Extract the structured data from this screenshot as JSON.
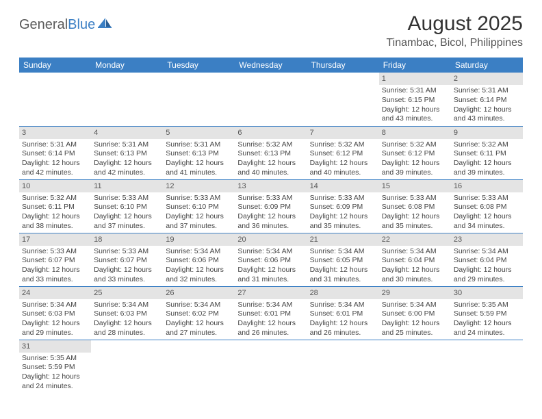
{
  "logo": {
    "text1": "General",
    "text2": "Blue"
  },
  "title": "August 2025",
  "subtitle": "Tinambac, Bicol, Philippines",
  "header_bg": "#3b7fc4",
  "daynum_bg": "#e4e4e4",
  "weekdays": [
    "Sunday",
    "Monday",
    "Tuesday",
    "Wednesday",
    "Thursday",
    "Friday",
    "Saturday"
  ],
  "weeks": [
    [
      null,
      null,
      null,
      null,
      null,
      {
        "n": "1",
        "sr": "Sunrise: 5:31 AM",
        "ss": "Sunset: 6:15 PM",
        "d1": "Daylight: 12 hours",
        "d2": "and 43 minutes."
      },
      {
        "n": "2",
        "sr": "Sunrise: 5:31 AM",
        "ss": "Sunset: 6:14 PM",
        "d1": "Daylight: 12 hours",
        "d2": "and 43 minutes."
      }
    ],
    [
      {
        "n": "3",
        "sr": "Sunrise: 5:31 AM",
        "ss": "Sunset: 6:14 PM",
        "d1": "Daylight: 12 hours",
        "d2": "and 42 minutes."
      },
      {
        "n": "4",
        "sr": "Sunrise: 5:31 AM",
        "ss": "Sunset: 6:13 PM",
        "d1": "Daylight: 12 hours",
        "d2": "and 42 minutes."
      },
      {
        "n": "5",
        "sr": "Sunrise: 5:31 AM",
        "ss": "Sunset: 6:13 PM",
        "d1": "Daylight: 12 hours",
        "d2": "and 41 minutes."
      },
      {
        "n": "6",
        "sr": "Sunrise: 5:32 AM",
        "ss": "Sunset: 6:13 PM",
        "d1": "Daylight: 12 hours",
        "d2": "and 40 minutes."
      },
      {
        "n": "7",
        "sr": "Sunrise: 5:32 AM",
        "ss": "Sunset: 6:12 PM",
        "d1": "Daylight: 12 hours",
        "d2": "and 40 minutes."
      },
      {
        "n": "8",
        "sr": "Sunrise: 5:32 AM",
        "ss": "Sunset: 6:12 PM",
        "d1": "Daylight: 12 hours",
        "d2": "and 39 minutes."
      },
      {
        "n": "9",
        "sr": "Sunrise: 5:32 AM",
        "ss": "Sunset: 6:11 PM",
        "d1": "Daylight: 12 hours",
        "d2": "and 39 minutes."
      }
    ],
    [
      {
        "n": "10",
        "sr": "Sunrise: 5:32 AM",
        "ss": "Sunset: 6:11 PM",
        "d1": "Daylight: 12 hours",
        "d2": "and 38 minutes."
      },
      {
        "n": "11",
        "sr": "Sunrise: 5:33 AM",
        "ss": "Sunset: 6:10 PM",
        "d1": "Daylight: 12 hours",
        "d2": "and 37 minutes."
      },
      {
        "n": "12",
        "sr": "Sunrise: 5:33 AM",
        "ss": "Sunset: 6:10 PM",
        "d1": "Daylight: 12 hours",
        "d2": "and 37 minutes."
      },
      {
        "n": "13",
        "sr": "Sunrise: 5:33 AM",
        "ss": "Sunset: 6:09 PM",
        "d1": "Daylight: 12 hours",
        "d2": "and 36 minutes."
      },
      {
        "n": "14",
        "sr": "Sunrise: 5:33 AM",
        "ss": "Sunset: 6:09 PM",
        "d1": "Daylight: 12 hours",
        "d2": "and 35 minutes."
      },
      {
        "n": "15",
        "sr": "Sunrise: 5:33 AM",
        "ss": "Sunset: 6:08 PM",
        "d1": "Daylight: 12 hours",
        "d2": "and 35 minutes."
      },
      {
        "n": "16",
        "sr": "Sunrise: 5:33 AM",
        "ss": "Sunset: 6:08 PM",
        "d1": "Daylight: 12 hours",
        "d2": "and 34 minutes."
      }
    ],
    [
      {
        "n": "17",
        "sr": "Sunrise: 5:33 AM",
        "ss": "Sunset: 6:07 PM",
        "d1": "Daylight: 12 hours",
        "d2": "and 33 minutes."
      },
      {
        "n": "18",
        "sr": "Sunrise: 5:33 AM",
        "ss": "Sunset: 6:07 PM",
        "d1": "Daylight: 12 hours",
        "d2": "and 33 minutes."
      },
      {
        "n": "19",
        "sr": "Sunrise: 5:34 AM",
        "ss": "Sunset: 6:06 PM",
        "d1": "Daylight: 12 hours",
        "d2": "and 32 minutes."
      },
      {
        "n": "20",
        "sr": "Sunrise: 5:34 AM",
        "ss": "Sunset: 6:06 PM",
        "d1": "Daylight: 12 hours",
        "d2": "and 31 minutes."
      },
      {
        "n": "21",
        "sr": "Sunrise: 5:34 AM",
        "ss": "Sunset: 6:05 PM",
        "d1": "Daylight: 12 hours",
        "d2": "and 31 minutes."
      },
      {
        "n": "22",
        "sr": "Sunrise: 5:34 AM",
        "ss": "Sunset: 6:04 PM",
        "d1": "Daylight: 12 hours",
        "d2": "and 30 minutes."
      },
      {
        "n": "23",
        "sr": "Sunrise: 5:34 AM",
        "ss": "Sunset: 6:04 PM",
        "d1": "Daylight: 12 hours",
        "d2": "and 29 minutes."
      }
    ],
    [
      {
        "n": "24",
        "sr": "Sunrise: 5:34 AM",
        "ss": "Sunset: 6:03 PM",
        "d1": "Daylight: 12 hours",
        "d2": "and 29 minutes."
      },
      {
        "n": "25",
        "sr": "Sunrise: 5:34 AM",
        "ss": "Sunset: 6:03 PM",
        "d1": "Daylight: 12 hours",
        "d2": "and 28 minutes."
      },
      {
        "n": "26",
        "sr": "Sunrise: 5:34 AM",
        "ss": "Sunset: 6:02 PM",
        "d1": "Daylight: 12 hours",
        "d2": "and 27 minutes."
      },
      {
        "n": "27",
        "sr": "Sunrise: 5:34 AM",
        "ss": "Sunset: 6:01 PM",
        "d1": "Daylight: 12 hours",
        "d2": "and 26 minutes."
      },
      {
        "n": "28",
        "sr": "Sunrise: 5:34 AM",
        "ss": "Sunset: 6:01 PM",
        "d1": "Daylight: 12 hours",
        "d2": "and 26 minutes."
      },
      {
        "n": "29",
        "sr": "Sunrise: 5:34 AM",
        "ss": "Sunset: 6:00 PM",
        "d1": "Daylight: 12 hours",
        "d2": "and 25 minutes."
      },
      {
        "n": "30",
        "sr": "Sunrise: 5:35 AM",
        "ss": "Sunset: 5:59 PM",
        "d1": "Daylight: 12 hours",
        "d2": "and 24 minutes."
      }
    ],
    [
      {
        "n": "31",
        "sr": "Sunrise: 5:35 AM",
        "ss": "Sunset: 5:59 PM",
        "d1": "Daylight: 12 hours",
        "d2": "and 24 minutes."
      },
      null,
      null,
      null,
      null,
      null,
      null
    ]
  ]
}
